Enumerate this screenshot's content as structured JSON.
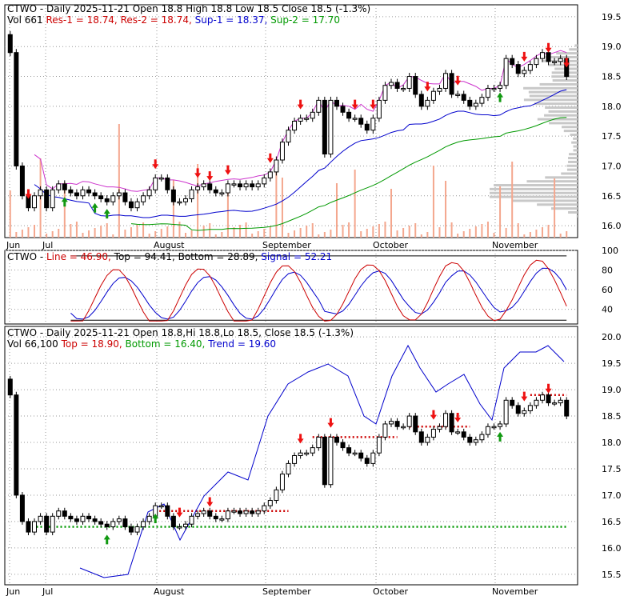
{
  "colors": {
    "res1": "#cc0000",
    "res2": "#cc0000",
    "sup1": "#0000cc",
    "sup2": "#009900",
    "line": "#cc0000",
    "top": "#cc0000",
    "bottom": "#009900",
    "signal": "#0000cc",
    "trend": "#0000cc",
    "volume": "#f4a78e",
    "envelope": "#cc33cc",
    "arrow_down": "#ee1111",
    "arrow_up": "#119911",
    "grid": "#999999"
  },
  "x_labels": [
    "Jun",
    "Jul",
    "August",
    "September",
    "October",
    "November"
  ],
  "panel1": {
    "title": "CTWO - Daily 2025-11-21 Open 18.8  High 18.8  Low 18.5  Close 18.5 (-1.3%)",
    "legend": [
      {
        "text": "Vol 661",
        "color": "#000000"
      },
      {
        "text": "Res-1 = 18.74,",
        "color": "#cc0000"
      },
      {
        "text": "Res-2 = 18.74,",
        "color": "#cc0000"
      },
      {
        "text": "Sup-1 = 18.37,",
        "color": "#0000cc"
      },
      {
        "text": "Sup-2 = 17.70",
        "color": "#009900"
      }
    ],
    "y_ticks": [
      "19.5",
      "19.0",
      "18.5",
      "18.0",
      "17.5",
      "17.0",
      "16.5",
      "16.0"
    ]
  },
  "panel2": {
    "legend": [
      {
        "text": "CTWO - ",
        "color": "#000000"
      },
      {
        "text": "Line = 46.90,",
        "color": "#cc0000"
      },
      {
        "text": "Top = 94.41,",
        "color": "#000000"
      },
      {
        "text": "Bottom = 28.89,",
        "color": "#000000"
      },
      {
        "text": "Signal = 52.21",
        "color": "#0000cc"
      }
    ],
    "y_ticks": [
      "100",
      "80",
      "60",
      "40"
    ]
  },
  "panel3": {
    "title": "CTWO - Daily 2025-11-21 Open 18.8,Hi 18.8,Lo 18.5, Close 18.5 (-1.3%)",
    "legend": [
      {
        "text": "Vol 66,100",
        "color": "#000000"
      },
      {
        "text": "Top = 18.90,",
        "color": "#cc0000"
      },
      {
        "text": "Bottom = 16.40,",
        "color": "#009900"
      },
      {
        "text": "Trend = 19.60",
        "color": "#0000cc"
      }
    ],
    "y_ticks": [
      "20.0",
      "19.5",
      "19.0",
      "18.5",
      "18.0",
      "17.5",
      "17.0",
      "16.5",
      "16.0",
      "15.5"
    ]
  },
  "chart_data": [
    {
      "type": "candlestick",
      "title": "CTWO - Daily 2025-11-21 Open 18.8  High 18.8  Low 18.5  Close 18.5 (-1.3%)",
      "x_range": [
        "2025-06",
        "2025-11-21"
      ],
      "ylim": [
        15.8,
        19.7
      ],
      "closes": [
        18.9,
        17.0,
        16.5,
        16.3,
        16.5,
        16.6,
        16.3,
        16.6,
        16.7,
        16.6,
        16.55,
        16.5,
        16.6,
        16.55,
        16.5,
        16.45,
        16.4,
        16.5,
        16.55,
        16.4,
        16.3,
        16.4,
        16.5,
        16.6,
        16.8,
        16.8,
        16.6,
        16.4,
        16.4,
        16.45,
        16.6,
        16.65,
        16.7,
        16.6,
        16.55,
        16.55,
        16.7,
        16.7,
        16.65,
        16.7,
        16.65,
        16.7,
        16.8,
        16.9,
        17.1,
        17.4,
        17.6,
        17.75,
        17.8,
        17.8,
        17.9,
        18.1,
        17.2,
        18.1,
        18.0,
        17.9,
        17.8,
        17.8,
        17.7,
        17.6,
        17.8,
        18.1,
        18.35,
        18.4,
        18.3,
        18.3,
        18.5,
        18.2,
        18.0,
        18.1,
        18.25,
        18.3,
        18.55,
        18.2,
        18.2,
        18.1,
        18.0,
        18.05,
        18.15,
        18.3,
        18.3,
        18.35,
        18.8,
        18.7,
        18.55,
        18.6,
        18.7,
        18.8,
        18.9,
        18.75,
        18.75,
        18.8,
        18.5
      ],
      "series": [
        {
          "name": "Res-1",
          "last": 18.74
        },
        {
          "name": "Res-2",
          "last": 18.74
        },
        {
          "name": "Sup-1",
          "last": 18.37
        },
        {
          "name": "Sup-2",
          "last": 17.7
        }
      ]
    },
    {
      "type": "line",
      "ylim": [
        25,
        100
      ],
      "y_ticks": [
        100,
        80,
        60,
        40
      ],
      "series": [
        {
          "name": "Line",
          "last": 46.9
        },
        {
          "name": "Top",
          "last": 94.41
        },
        {
          "name": "Bottom",
          "last": 28.89
        },
        {
          "name": "Signal",
          "last": 52.21
        }
      ]
    },
    {
      "type": "candlestick",
      "title": "CTWO - Daily 2025-11-21 Open 18.8,Hi 18.8,Lo 18.5, Close 18.5 (-1.3%)",
      "ylim": [
        15.3,
        20.2
      ],
      "series": [
        {
          "name": "Top",
          "last": 18.9
        },
        {
          "name": "Bottom",
          "last": 16.4
        },
        {
          "name": "Trend",
          "last": 19.6
        }
      ]
    }
  ]
}
